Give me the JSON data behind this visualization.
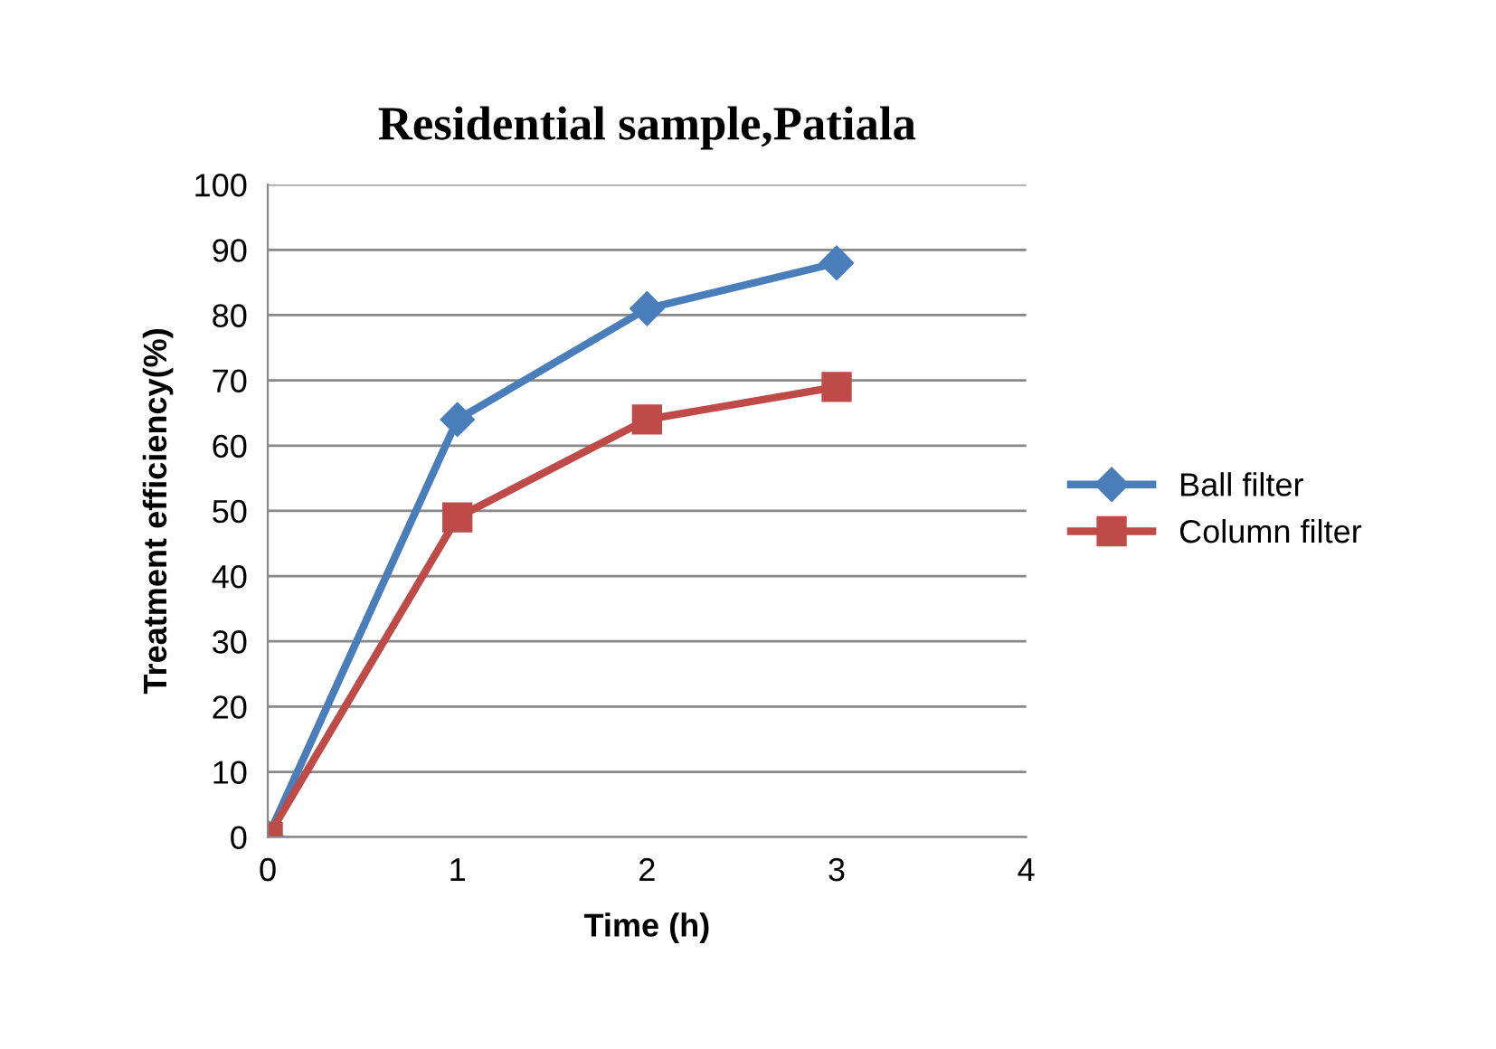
{
  "chart_data": {
    "type": "line",
    "title": "Residential sample,Patiala",
    "xlabel": "Time (h)",
    "ylabel": "Treatment efficiency(%)",
    "x": [
      0,
      1,
      2,
      3
    ],
    "series": [
      {
        "name": "Ball filter",
        "color": "#4a7ebb",
        "values": [
          0,
          64,
          81,
          88
        ],
        "marker": "diamond"
      },
      {
        "name": "Column filter",
        "color": "#be4b48",
        "values": [
          0,
          49,
          64,
          69
        ],
        "marker": "square"
      }
    ],
    "xlim": [
      0,
      4
    ],
    "xticks": [
      0,
      1,
      2,
      3,
      4
    ],
    "ylim": [
      0,
      100
    ],
    "yticks": [
      0,
      10,
      20,
      30,
      40,
      50,
      60,
      70,
      80,
      90,
      100
    ],
    "grid": "y",
    "legend": "right",
    "line_style": "solid"
  }
}
